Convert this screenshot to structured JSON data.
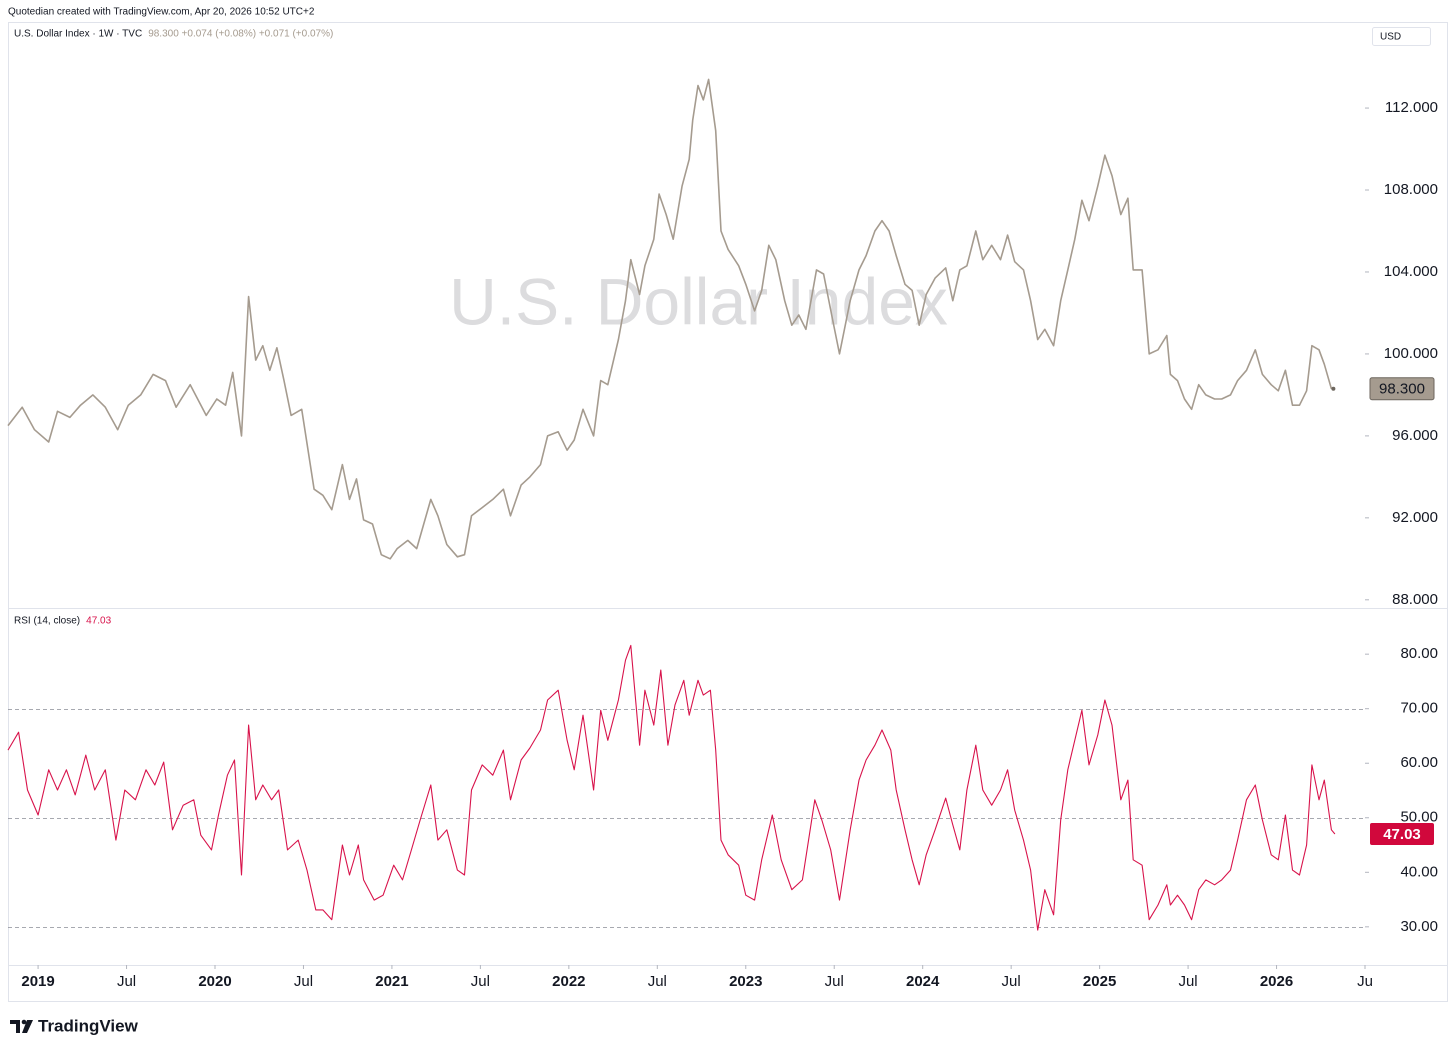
{
  "header": "Quotedian created with TradingView.com, Apr 20, 2026 10:52 UTC+2",
  "footer": "TradingView",
  "chart_data": [
    {
      "type": "line",
      "title": "U.S. Dollar Index · 1W · TVC",
      "subtitle": "98.300 +0.074 (+0.08%) +0.071 (+0.07%)",
      "watermark": "U.S. Dollar Index",
      "currency": "USD",
      "color": "#a59b8f",
      "price_label": {
        "value": 98.3,
        "label": "98.300"
      },
      "xlim": [
        2018.83,
        2026.5
      ],
      "ylim": [
        87.6,
        116.2
      ],
      "yticks": [
        {
          "value": 88,
          "label": "88.000"
        },
        {
          "value": 92,
          "label": "92.000"
        },
        {
          "value": 96,
          "label": "96.000"
        },
        {
          "value": 100,
          "label": "100.000"
        },
        {
          "value": 104,
          "label": "104.000"
        },
        {
          "value": 108,
          "label": "108.000"
        },
        {
          "value": 112,
          "label": "112.000"
        }
      ],
      "x": [
        2018.83,
        2018.91,
        2018.98,
        2019.06,
        2019.11,
        2019.18,
        2019.24,
        2019.31,
        2019.38,
        2019.45,
        2019.51,
        2019.58,
        2019.65,
        2019.72,
        2019.78,
        2019.86,
        2019.95,
        2020.01,
        2020.06,
        2020.1,
        2020.15,
        2020.19,
        2020.23,
        2020.27,
        2020.31,
        2020.35,
        2020.39,
        2020.43,
        2020.49,
        2020.56,
        2020.61,
        2020.66,
        2020.72,
        2020.76,
        2020.8,
        2020.84,
        2020.89,
        2020.94,
        2020.99,
        2021.03,
        2021.09,
        2021.14,
        2021.22,
        2021.26,
        2021.31,
        2021.37,
        2021.41,
        2021.45,
        2021.51,
        2021.57,
        2021.63,
        2021.67,
        2021.73,
        2021.78,
        2021.84,
        2021.88,
        2021.94,
        2021.99,
        2022.03,
        2022.08,
        2022.14,
        2022.18,
        2022.22,
        2022.28,
        2022.32,
        2022.35,
        2022.4,
        2022.43,
        2022.48,
        2022.51,
        2022.55,
        2022.59,
        2022.64,
        2022.68,
        2022.7,
        2022.73,
        2022.76,
        2022.79,
        2022.83,
        2022.86,
        2022.9,
        2022.96,
        2023.0,
        2023.05,
        2023.09,
        2023.13,
        2023.17,
        2023.22,
        2023.26,
        2023.3,
        2023.34,
        2023.4,
        2023.44,
        2023.49,
        2023.53,
        2023.59,
        2023.64,
        2023.68,
        2023.73,
        2023.77,
        2023.81,
        2023.85,
        2023.9,
        2023.94,
        2023.98,
        2024.02,
        2024.07,
        2024.13,
        2024.17,
        2024.21,
        2024.25,
        2024.3,
        2024.34,
        2024.39,
        2024.44,
        2024.48,
        2024.52,
        2024.57,
        2024.61,
        2024.65,
        2024.69,
        2024.74,
        2024.78,
        2024.82,
        2024.86,
        2024.9,
        2024.94,
        2024.99,
        2025.03,
        2025.07,
        2025.12,
        2025.16,
        2025.19,
        2025.24,
        2025.28,
        2025.33,
        2025.38,
        2025.4,
        2025.44,
        2025.48,
        2025.52,
        2025.56,
        2025.6,
        2025.65,
        2025.69,
        2025.74,
        2025.78,
        2025.83,
        2025.88,
        2025.92,
        2025.97,
        2026.01,
        2026.05,
        2026.09,
        2026.13,
        2026.17,
        2026.2,
        2026.24,
        2026.27,
        2026.31
      ],
      "values": [
        96.5,
        97.4,
        96.3,
        95.7,
        97.2,
        96.9,
        97.5,
        98.0,
        97.4,
        96.3,
        97.5,
        98.0,
        99.0,
        98.7,
        97.4,
        98.5,
        97.0,
        97.8,
        97.5,
        99.1,
        96.0,
        102.8,
        99.7,
        100.4,
        99.2,
        100.3,
        98.7,
        97.0,
        97.3,
        93.4,
        93.1,
        92.4,
        94.6,
        92.9,
        93.9,
        91.9,
        91.7,
        90.2,
        90.0,
        90.5,
        90.9,
        90.5,
        92.9,
        92.1,
        90.7,
        90.1,
        90.2,
        92.1,
        92.5,
        92.9,
        93.4,
        92.1,
        93.6,
        94.0,
        94.6,
        96.0,
        96.2,
        95.3,
        95.8,
        97.3,
        96.0,
        98.7,
        98.5,
        100.7,
        102.6,
        104.6,
        102.9,
        104.3,
        105.6,
        107.8,
        106.8,
        105.6,
        108.2,
        109.5,
        111.4,
        113.1,
        112.4,
        113.4,
        110.9,
        106.0,
        105.1,
        104.3,
        103.4,
        102.1,
        103.1,
        105.3,
        104.6,
        102.6,
        101.4,
        101.9,
        101.2,
        104.1,
        103.9,
        101.7,
        100.0,
        102.6,
        104.1,
        104.8,
        106.0,
        106.5,
        106.0,
        104.8,
        103.4,
        103.1,
        101.4,
        102.9,
        103.7,
        104.2,
        102.6,
        104.1,
        104.3,
        106.0,
        104.6,
        105.3,
        104.6,
        105.8,
        104.5,
        104.1,
        102.6,
        100.7,
        101.2,
        100.4,
        102.6,
        104.1,
        105.6,
        107.5,
        106.5,
        108.2,
        109.7,
        108.7,
        106.8,
        107.6,
        104.1,
        104.1,
        100.0,
        100.2,
        100.9,
        99.0,
        98.7,
        97.8,
        97.3,
        98.5,
        98.0,
        97.8,
        97.8,
        98.0,
        98.7,
        99.2,
        100.2,
        99.0,
        98.5,
        98.2,
        99.2,
        97.5,
        97.5,
        98.2,
        100.4,
        100.2,
        99.5,
        98.3
      ]
    },
    {
      "type": "line",
      "title": "RSI (14, close)",
      "subtitle": "47.03",
      "color": "#d8134b",
      "price_label": {
        "value": 47.03,
        "label": "47.03"
      },
      "levels": [
        70,
        50,
        30
      ],
      "xlim": [
        2018.83,
        2026.5
      ],
      "ylim": [
        23,
        88.1
      ],
      "yticks": [
        {
          "value": 30,
          "label": "30.00"
        },
        {
          "value": 40,
          "label": "40.00"
        },
        {
          "value": 50,
          "label": "50.00"
        },
        {
          "value": 60,
          "label": "60.00"
        },
        {
          "value": 70,
          "label": "70.00"
        },
        {
          "value": 80,
          "label": "80.00"
        }
      ],
      "xticks": [
        2019,
        {
          "value": 2019.5,
          "label": "Jul"
        },
        2020,
        {
          "value": 2020.5,
          "label": "Jul"
        },
        2021,
        {
          "value": 2021.5,
          "label": "Jul"
        },
        2022,
        {
          "value": 2022.5,
          "label": "Jul"
        },
        2023,
        {
          "value": 2023.5,
          "label": "Jul"
        },
        2024,
        {
          "value": 2024.5,
          "label": "Jul"
        },
        2025,
        {
          "value": 2025.5,
          "label": "Jul"
        },
        2026,
        {
          "value": 2026.5,
          "label": "Ju"
        }
      ],
      "x": [
        2018.83,
        2018.89,
        2018.94,
        2019.0,
        2019.06,
        2019.11,
        2019.16,
        2019.21,
        2019.27,
        2019.32,
        2019.38,
        2019.44,
        2019.49,
        2019.55,
        2019.61,
        2019.66,
        2019.71,
        2019.76,
        2019.82,
        2019.88,
        2019.92,
        2019.98,
        2020.02,
        2020.07,
        2020.11,
        2020.15,
        2020.19,
        2020.23,
        2020.27,
        2020.32,
        2020.36,
        2020.41,
        2020.47,
        2020.52,
        2020.57,
        2020.61,
        2020.66,
        2020.72,
        2020.76,
        2020.81,
        2020.84,
        2020.9,
        2020.95,
        2021.01,
        2021.06,
        2021.11,
        2021.16,
        2021.22,
        2021.26,
        2021.31,
        2021.37,
        2021.41,
        2021.45,
        2021.51,
        2021.57,
        2021.63,
        2021.67,
        2021.73,
        2021.78,
        2021.84,
        2021.88,
        2021.94,
        2021.99,
        2022.03,
        2022.08,
        2022.14,
        2022.18,
        2022.22,
        2022.28,
        2022.32,
        2022.35,
        2022.4,
        2022.43,
        2022.48,
        2022.52,
        2022.56,
        2022.6,
        2022.65,
        2022.68,
        2022.73,
        2022.76,
        2022.8,
        2022.83,
        2022.86,
        2022.9,
        2022.96,
        2023.0,
        2023.05,
        2023.09,
        2023.15,
        2023.2,
        2023.26,
        2023.32,
        2023.39,
        2023.43,
        2023.48,
        2023.53,
        2023.59,
        2023.64,
        2023.68,
        2023.73,
        2023.77,
        2023.82,
        2023.85,
        2023.9,
        2023.94,
        2023.98,
        2024.02,
        2024.07,
        2024.13,
        2024.17,
        2024.21,
        2024.25,
        2024.3,
        2024.34,
        2024.39,
        2024.44,
        2024.48,
        2024.52,
        2024.57,
        2024.61,
        2024.65,
        2024.69,
        2024.74,
        2024.78,
        2024.82,
        2024.86,
        2024.9,
        2024.94,
        2024.99,
        2025.03,
        2025.07,
        2025.12,
        2025.16,
        2025.19,
        2025.24,
        2025.28,
        2025.33,
        2025.38,
        2025.4,
        2025.44,
        2025.48,
        2025.52,
        2025.56,
        2025.6,
        2025.65,
        2025.69,
        2025.74,
        2025.78,
        2025.83,
        2025.88,
        2025.92,
        2025.97,
        2026.01,
        2026.05,
        2026.09,
        2026.13,
        2026.17,
        2026.2,
        2026.24,
        2026.27,
        2026.31,
        2026.33
      ],
      "values": [
        62.4,
        65.7,
        55.1,
        50.5,
        58.8,
        55.1,
        58.8,
        54.2,
        61.5,
        55.1,
        58.8,
        45.9,
        55.1,
        53.3,
        58.8,
        56.0,
        60.2,
        47.8,
        52.3,
        53.3,
        46.8,
        44.1,
        50.5,
        57.8,
        60.6,
        39.5,
        67.0,
        53.3,
        56.0,
        53.3,
        55.1,
        44.1,
        45.9,
        40.4,
        33.1,
        33.1,
        31.3,
        45.0,
        39.5,
        45.0,
        38.6,
        34.9,
        35.8,
        41.3,
        38.6,
        44.1,
        49.6,
        56.0,
        45.9,
        47.8,
        40.4,
        39.5,
        55.1,
        59.7,
        57.8,
        62.4,
        53.3,
        60.6,
        62.8,
        66.1,
        71.6,
        73.4,
        64.2,
        58.8,
        68.8,
        55.1,
        69.7,
        64.2,
        71.6,
        78.9,
        81.6,
        63.3,
        73.4,
        67.0,
        77.1,
        63.3,
        70.7,
        75.2,
        68.8,
        75.2,
        72.5,
        73.4,
        62.4,
        45.9,
        43.2,
        41.3,
        35.8,
        34.9,
        42.3,
        50.5,
        42.3,
        36.8,
        38.6,
        53.3,
        49.6,
        44.1,
        34.9,
        47.8,
        56.9,
        60.6,
        63.3,
        66.1,
        62.4,
        55.1,
        47.8,
        42.3,
        37.7,
        43.2,
        47.8,
        53.6,
        48.7,
        44.1,
        55.1,
        63.3,
        55.1,
        52.3,
        55.1,
        58.8,
        51.4,
        45.9,
        40.4,
        29.4,
        36.8,
        32.2,
        49.6,
        58.8,
        64.2,
        69.7,
        59.7,
        65.2,
        71.6,
        67.0,
        53.3,
        56.9,
        42.3,
        41.3,
        31.3,
        34.0,
        37.7,
        34.0,
        35.8,
        34.0,
        31.3,
        36.8,
        38.6,
        37.7,
        38.6,
        40.4,
        45.9,
        53.3,
        56.0,
        49.6,
        43.2,
        42.3,
        50.5,
        40.4,
        39.5,
        45.0,
        59.7,
        53.3,
        56.9,
        47.8,
        47.03
      ]
    }
  ]
}
